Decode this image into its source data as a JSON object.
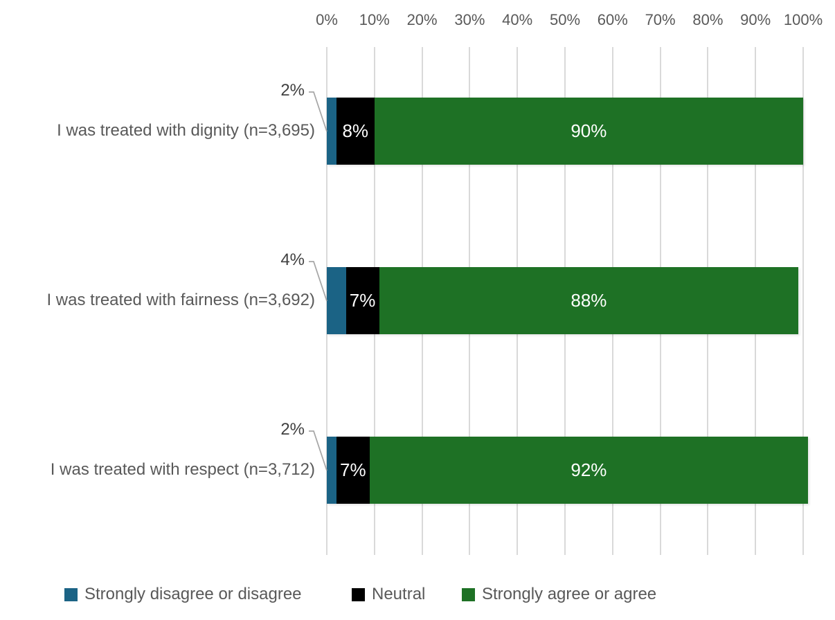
{
  "chart_data": {
    "type": "bar",
    "variant": "horizontal-stacked",
    "categories": [
      "I was treated with dignity (n=3,695)",
      "I was treated with fairness (n=3,692)",
      "I was treated with respect (n=3,712)"
    ],
    "series": [
      {
        "name": "Strongly disagree or disagree",
        "color": "#1B6385",
        "values": [
          2,
          4,
          2
        ]
      },
      {
        "name": "Neutral",
        "color": "#000000",
        "values": [
          8,
          7,
          7
        ]
      },
      {
        "name": "Strongly agree or agree",
        "color": "#1E7125",
        "values": [
          90,
          88,
          92
        ]
      }
    ],
    "data_labels": {
      "inside": [
        [
          "",
          "8%",
          "90%"
        ],
        [
          "",
          "7%",
          "88%"
        ],
        [
          "",
          "7%",
          "92%"
        ]
      ],
      "callouts": [
        "2%",
        "4%",
        "2%"
      ]
    },
    "x_axis": {
      "position": "top",
      "min": 0,
      "max": 100,
      "tick_labels": [
        "0%",
        "10%",
        "20%",
        "30%",
        "40%",
        "50%",
        "60%",
        "70%",
        "80%",
        "90%",
        "100%"
      ]
    },
    "gridlines": true,
    "legend": {
      "position": "bottom",
      "entries": [
        "Strongly disagree or disagree",
        "Neutral",
        "Strongly agree or agree"
      ]
    }
  },
  "colors": {
    "grid": "#D9D9D9",
    "axis_text": "#595959",
    "category_text": "#595959",
    "callout_text": "#404040",
    "leader_line": "#A6A6A6",
    "data_label_text": "#FFFFFF",
    "background": "#FFFFFF"
  }
}
